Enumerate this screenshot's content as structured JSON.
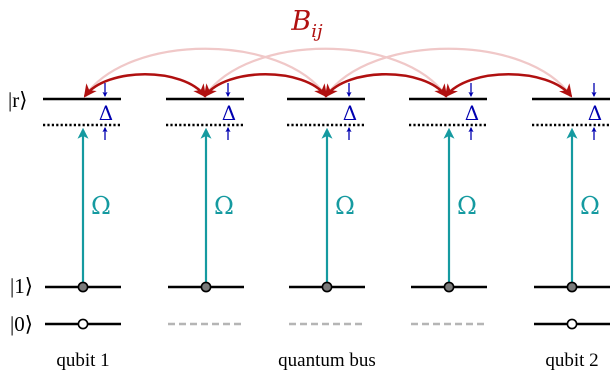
{
  "labels": {
    "coupling": "B",
    "coupling_sub": "ij",
    "rydberg_state": "|r⟩",
    "state_one": "|1⟩",
    "state_zero": "|0⟩",
    "detuning": "Δ",
    "rabi": "Ω",
    "qubit_left": "qubit 1",
    "bus": "quantum bus",
    "qubit_right": "qubit 2"
  },
  "colors": {
    "level": "#000000",
    "coupling_strong": "#b01010",
    "coupling_weak": "#f0c8c8",
    "drive": "#159aa0",
    "detuning": "#0000b0",
    "bus_zero_level": "#b5b5b5",
    "one_dot_fill": "#7a7a7a"
  },
  "diagram": {
    "atoms": [
      {
        "role": "qubit",
        "zero_level": "solid",
        "zero_population": "empty-circle",
        "one_population": "filled-circle"
      },
      {
        "role": "bus",
        "zero_level": "dashed",
        "zero_population": "none",
        "one_population": "filled-circle"
      },
      {
        "role": "bus",
        "zero_level": "dashed",
        "zero_population": "none",
        "one_population": "filled-circle"
      },
      {
        "role": "bus",
        "zero_level": "dashed",
        "zero_population": "none",
        "one_population": "filled-circle"
      },
      {
        "role": "qubit",
        "zero_level": "solid",
        "zero_population": "empty-circle",
        "one_population": "filled-circle"
      }
    ],
    "couplings": {
      "nearest_neighbour": "strong",
      "next_nearest_neighbour": "weak"
    }
  }
}
